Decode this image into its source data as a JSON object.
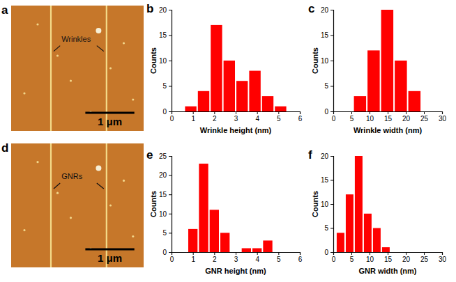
{
  "chart_data": [
    {
      "type": "image",
      "panel": "a",
      "annotations": [
        "Wrinkles",
        "1 μm"
      ]
    },
    {
      "type": "histogram",
      "panel": "b",
      "x_label": "Wrinkle height (nm)",
      "y_label": "Counts",
      "bins": [
        0.6,
        1.2,
        1.8,
        2.4,
        3.0,
        3.6,
        4.2,
        4.8,
        5.4
      ],
      "counts": [
        1,
        4,
        17,
        10,
        6,
        8,
        3,
        1
      ],
      "color": "#ff0000",
      "xlim": [
        0,
        6
      ],
      "ylim": [
        0,
        20
      ],
      "xticks": [
        0,
        1,
        2,
        3,
        4,
        5,
        6
      ],
      "yticks": [
        0,
        5,
        10,
        15,
        20
      ]
    },
    {
      "type": "histogram",
      "panel": "c",
      "x_label": "Wrinkle width (nm)",
      "y_label": "Counts",
      "bins": [
        5.5,
        9.25,
        13,
        16.75,
        20.5,
        24.25
      ],
      "counts": [
        3,
        12,
        20,
        10,
        4
      ],
      "color": "#ff0000",
      "xlim": [
        0,
        30
      ],
      "ylim": [
        0,
        20
      ],
      "xticks": [
        0,
        5,
        10,
        15,
        20,
        25,
        30
      ],
      "yticks": [
        0,
        5,
        10,
        15,
        20
      ]
    },
    {
      "type": "image",
      "panel": "d",
      "annotations": [
        "GNRs",
        "1 μm"
      ]
    },
    {
      "type": "histogram",
      "panel": "e",
      "x_label": "GNR height (nm)",
      "y_label": "Counts",
      "bins": [
        0.75,
        1.25,
        1.75,
        2.25,
        2.75,
        3.25,
        3.75,
        4.25,
        4.75
      ],
      "counts": [
        6,
        23,
        11,
        5,
        0,
        1,
        1,
        3
      ],
      "color": "#ff0000",
      "xlim": [
        0,
        6
      ],
      "ylim": [
        0,
        25
      ],
      "xticks": [
        0,
        1,
        2,
        3,
        4,
        5,
        6
      ],
      "yticks": [
        0,
        5,
        10,
        15,
        20,
        25
      ]
    },
    {
      "type": "histogram",
      "panel": "f",
      "x_label": "GNR width (nm)",
      "y_label": "Counts",
      "bins": [
        0.75,
        3.25,
        5.75,
        8.25,
        10.75,
        13.25,
        15.75
      ],
      "counts": [
        4,
        12,
        20,
        8,
        5,
        1
      ],
      "color": "#ff0000",
      "xlim": [
        0,
        30
      ],
      "ylim": [
        0,
        20
      ],
      "xticks": [
        0,
        5,
        10,
        15,
        20,
        25,
        30
      ],
      "yticks": [
        0,
        5,
        10,
        15,
        20
      ]
    }
  ]
}
